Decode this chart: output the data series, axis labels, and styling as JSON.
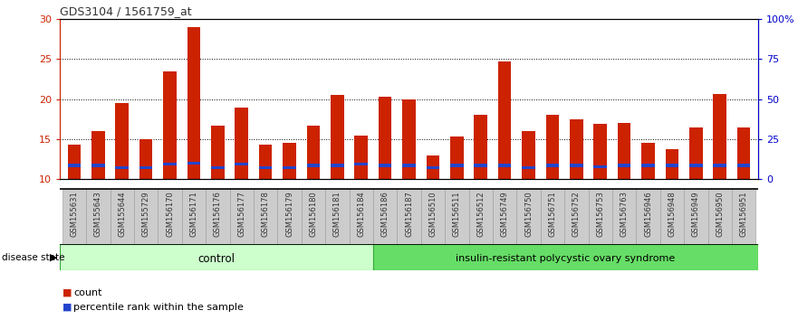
{
  "title": "GDS3104 / 1561759_at",
  "samples": [
    "GSM155631",
    "GSM155643",
    "GSM155644",
    "GSM155729",
    "GSM156170",
    "GSM156171",
    "GSM156176",
    "GSM156177",
    "GSM156178",
    "GSM156179",
    "GSM156180",
    "GSM156181",
    "GSM156184",
    "GSM156186",
    "GSM156187",
    "GSM156510",
    "GSM156511",
    "GSM156512",
    "GSM156749",
    "GSM156750",
    "GSM156751",
    "GSM156752",
    "GSM156753",
    "GSM156763",
    "GSM156946",
    "GSM156948",
    "GSM156949",
    "GSM156950",
    "GSM156951"
  ],
  "count_values": [
    14.3,
    16.0,
    19.5,
    15.0,
    23.5,
    29.0,
    16.7,
    19.0,
    14.3,
    14.5,
    16.7,
    20.5,
    15.5,
    20.3,
    20.0,
    13.0,
    15.3,
    18.0,
    24.7,
    16.0,
    18.0,
    17.5,
    16.9,
    17.0,
    14.5,
    13.8,
    16.5,
    20.7,
    16.5
  ],
  "blue_bar_height": 0.35,
  "blue_positions": [
    11.55,
    11.55,
    11.3,
    11.3,
    11.7,
    11.8,
    11.3,
    11.7,
    11.3,
    11.3,
    11.55,
    11.55,
    11.7,
    11.55,
    11.55,
    11.3,
    11.55,
    11.55,
    11.55,
    11.3,
    11.55,
    11.55,
    11.4,
    11.55,
    11.55,
    11.55,
    11.55,
    11.55,
    11.55
  ],
  "control_count": 13,
  "disease_count": 16,
  "control_label": "control",
  "disease_label": "insulin-resistant polycystic ovary syndrome",
  "ylim_left": [
    10,
    30
  ],
  "ylim_right": [
    0,
    100
  ],
  "yticks_left": [
    10,
    15,
    20,
    25,
    30
  ],
  "yticks_right": [
    0,
    25,
    50,
    75,
    100
  ],
  "ytick_labels_right": [
    "0",
    "25",
    "50",
    "75",
    "100%"
  ],
  "bar_color_red": "#CC2200",
  "bar_color_blue": "#2244CC",
  "bar_width": 0.55,
  "plot_bg": "#FFFFFF",
  "control_bg": "#CCFFCC",
  "disease_bg": "#66DD66",
  "legend_count_label": "count",
  "legend_percentile_label": "percentile rank within the sample",
  "disease_state_label": "disease state",
  "title_color": "#333333",
  "left_axis_color": "#CC2200",
  "right_axis_color": "#0000CC",
  "xtick_bg": "#CCCCCC",
  "xtick_border": "#999999"
}
